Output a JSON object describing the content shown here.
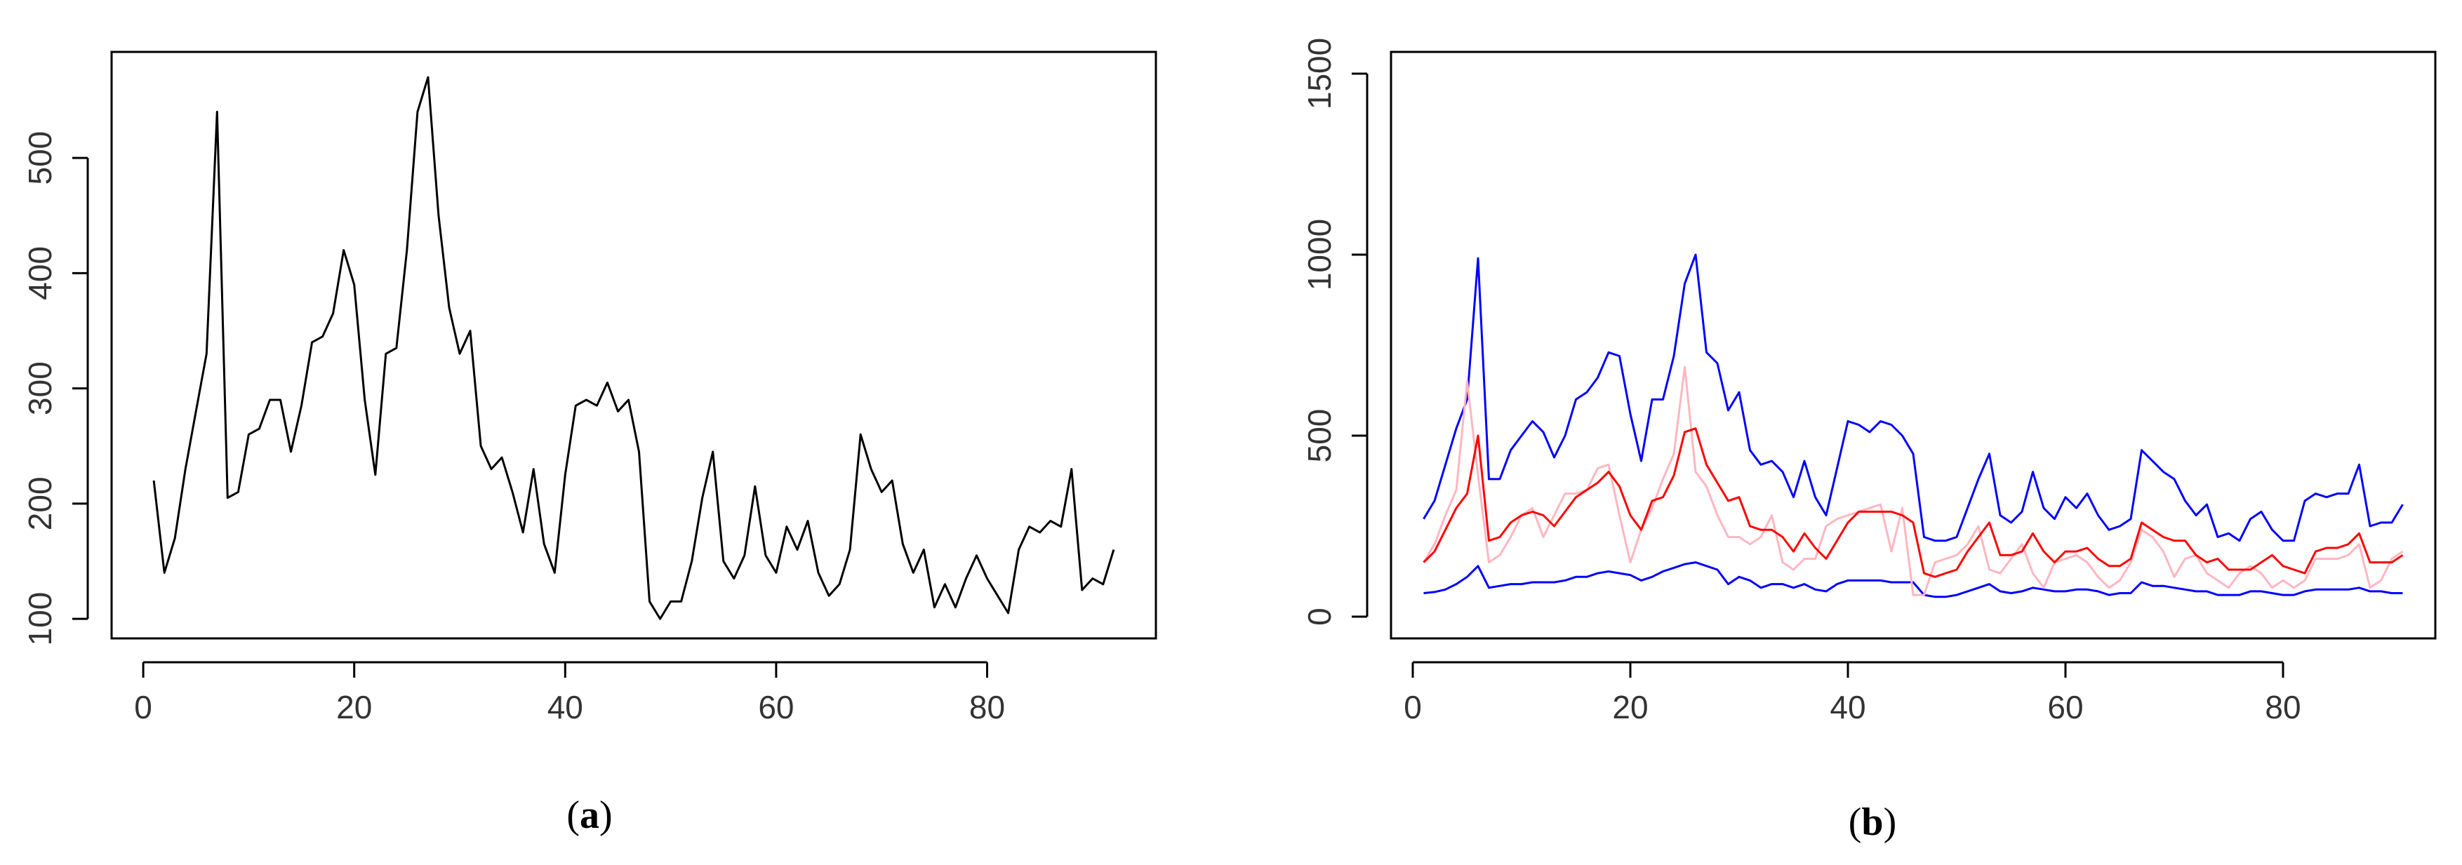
{
  "panels": [
    {
      "id": "a",
      "label_open": "(",
      "label_letter": "a",
      "label_close": ")"
    },
    {
      "id": "b",
      "label_open": "(",
      "label_letter": "b",
      "label_close": ")"
    }
  ],
  "chart_data": [
    {
      "type": "line",
      "title": "",
      "xlabel": "",
      "ylabel": "",
      "xlim": [
        -3,
        96
      ],
      "ylim": [
        83,
        592
      ],
      "xticks": [
        0,
        20,
        40,
        60,
        80
      ],
      "yticks": [
        100,
        200,
        300,
        400,
        500
      ],
      "grid": false,
      "series": [
        {
          "color": "#000000",
          "x": [
            1,
            2,
            3,
            4,
            5,
            6,
            7,
            8,
            9,
            10,
            11,
            12,
            13,
            14,
            15,
            16,
            17,
            18,
            19,
            20,
            21,
            22,
            23,
            24,
            25,
            26,
            27,
            28,
            29,
            30,
            31,
            32,
            33,
            34,
            35,
            36,
            37,
            38,
            39,
            40,
            41,
            42,
            43,
            44,
            45,
            46,
            47,
            48,
            49,
            50,
            51,
            52,
            53,
            54,
            55,
            56,
            57,
            58,
            59,
            60,
            61,
            62,
            63,
            64,
            65,
            66,
            67,
            68,
            69,
            70,
            71,
            72,
            73,
            74,
            75,
            76,
            77,
            78,
            79,
            80,
            81,
            82,
            83,
            84,
            85,
            86,
            87,
            88,
            89,
            90,
            91,
            92
          ],
          "y": [
            220,
            140,
            170,
            230,
            280,
            330,
            540,
            205,
            210,
            260,
            265,
            290,
            290,
            245,
            285,
            340,
            345,
            365,
            420,
            390,
            290,
            225,
            330,
            335,
            420,
            540,
            570,
            450,
            370,
            330,
            350,
            250,
            230,
            240,
            210,
            175,
            230,
            165,
            140,
            225,
            285,
            290,
            285,
            305,
            280,
            290,
            245,
            115,
            100,
            115,
            115,
            150,
            205,
            245,
            150,
            135,
            155,
            215,
            155,
            140,
            180,
            160,
            185,
            140,
            120,
            130,
            160,
            260,
            230,
            210,
            220,
            165,
            140,
            160,
            110,
            130,
            110,
            135,
            155,
            135,
            120,
            105,
            160,
            180,
            175,
            185,
            180,
            230,
            125,
            135,
            130,
            160
          ]
        }
      ]
    },
    {
      "type": "line",
      "title": "",
      "xlabel": "",
      "ylabel": "",
      "xlim": [
        -2,
        94
      ],
      "ylim": [
        -60,
        1560
      ],
      "xticks": [
        0,
        20,
        40,
        60,
        80
      ],
      "yticks": [
        0,
        500,
        1000,
        1500
      ],
      "grid": false,
      "series": [
        {
          "color": "#0000ff",
          "x": [
            1,
            2,
            3,
            4,
            5,
            6,
            7,
            8,
            9,
            10,
            11,
            12,
            13,
            14,
            15,
            16,
            17,
            18,
            19,
            20,
            21,
            22,
            23,
            24,
            25,
            26,
            27,
            28,
            29,
            30,
            31,
            32,
            33,
            34,
            35,
            36,
            37,
            38,
            39,
            40,
            41,
            42,
            43,
            44,
            45,
            46,
            47,
            48,
            49,
            50,
            51,
            52,
            53,
            54,
            55,
            56,
            57,
            58,
            59,
            60,
            61,
            62,
            63,
            64,
            65,
            66,
            67,
            68,
            69,
            70,
            71,
            72,
            73,
            74,
            75,
            76,
            77,
            78,
            79,
            80,
            81,
            82,
            83,
            84,
            85,
            86,
            87,
            88,
            89,
            90,
            91
          ],
          "y": [
            270,
            320,
            420,
            520,
            600,
            990,
            380,
            380,
            460,
            500,
            540,
            510,
            440,
            500,
            600,
            620,
            660,
            730,
            720,
            560,
            430,
            600,
            600,
            720,
            920,
            1000,
            730,
            700,
            570,
            620,
            460,
            420,
            430,
            400,
            330,
            430,
            330,
            280,
            410,
            540,
            530,
            510,
            540,
            530,
            500,
            450,
            220,
            210,
            210,
            220,
            300,
            380,
            450,
            280,
            260,
            290,
            400,
            300,
            270,
            330,
            300,
            340,
            280,
            240,
            250,
            270,
            460,
            430,
            400,
            380,
            320,
            280,
            310,
            220,
            230,
            210,
            270,
            290,
            240,
            210,
            210,
            320,
            340,
            330,
            340,
            340,
            420,
            250,
            260,
            260,
            310
          ]
        },
        {
          "color": "#0000ff",
          "x": [
            1,
            2,
            3,
            4,
            5,
            6,
            7,
            8,
            9,
            10,
            11,
            12,
            13,
            14,
            15,
            16,
            17,
            18,
            19,
            20,
            21,
            22,
            23,
            24,
            25,
            26,
            27,
            28,
            29,
            30,
            31,
            32,
            33,
            34,
            35,
            36,
            37,
            38,
            39,
            40,
            41,
            42,
            43,
            44,
            45,
            46,
            47,
            48,
            49,
            50,
            51,
            52,
            53,
            54,
            55,
            56,
            57,
            58,
            59,
            60,
            61,
            62,
            63,
            64,
            65,
            66,
            67,
            68,
            69,
            70,
            71,
            72,
            73,
            74,
            75,
            76,
            77,
            78,
            79,
            80,
            81,
            82,
            83,
            84,
            85,
            86,
            87,
            88,
            89,
            90,
            91
          ],
          "y": [
            65,
            68,
            75,
            90,
            110,
            140,
            80,
            85,
            90,
            90,
            95,
            95,
            95,
            100,
            110,
            110,
            120,
            125,
            120,
            115,
            100,
            110,
            125,
            135,
            145,
            150,
            140,
            130,
            90,
            110,
            100,
            80,
            90,
            90,
            80,
            90,
            75,
            70,
            90,
            100,
            100,
            100,
            100,
            95,
            95,
            95,
            60,
            55,
            55,
            60,
            70,
            80,
            90,
            70,
            65,
            70,
            80,
            75,
            70,
            70,
            75,
            75,
            70,
            60,
            65,
            65,
            95,
            85,
            85,
            80,
            75,
            70,
            70,
            60,
            60,
            60,
            70,
            70,
            65,
            60,
            60,
            70,
            75,
            75,
            75,
            75,
            80,
            70,
            70,
            65,
            65
          ]
        },
        {
          "color": "#ffb6c1",
          "x": [
            1,
            2,
            3,
            4,
            5,
            6,
            7,
            8,
            9,
            10,
            11,
            12,
            13,
            14,
            15,
            16,
            17,
            18,
            19,
            20,
            21,
            22,
            23,
            24,
            25,
            26,
            27,
            28,
            29,
            30,
            31,
            32,
            33,
            34,
            35,
            36,
            37,
            38,
            39,
            40,
            41,
            42,
            43,
            44,
            45,
            46,
            47,
            48,
            49,
            50,
            51,
            52,
            53,
            54,
            55,
            56,
            57,
            58,
            59,
            60,
            61,
            62,
            63,
            64,
            65,
            66,
            67,
            68,
            69,
            70,
            71,
            72,
            73,
            74,
            75,
            76,
            77,
            78,
            79,
            80,
            81,
            82,
            83,
            84,
            85,
            86,
            87,
            88,
            89,
            90,
            91
          ],
          "y": [
            150,
            200,
            280,
            350,
            650,
            390,
            150,
            170,
            220,
            280,
            300,
            220,
            280,
            340,
            340,
            350,
            410,
            420,
            280,
            150,
            240,
            300,
            380,
            450,
            690,
            400,
            360,
            280,
            220,
            220,
            200,
            220,
            280,
            150,
            130,
            160,
            160,
            250,
            270,
            280,
            290,
            300,
            310,
            180,
            300,
            60,
            60,
            150,
            160,
            170,
            200,
            250,
            130,
            120,
            160,
            200,
            120,
            80,
            150,
            160,
            170,
            150,
            110,
            80,
            100,
            150,
            240,
            220,
            180,
            110,
            160,
            170,
            120,
            100,
            80,
            120,
            140,
            120,
            80,
            100,
            80,
            100,
            160,
            160,
            160,
            170,
            200,
            80,
            100,
            160,
            180
          ]
        },
        {
          "color": "#ff0000",
          "x": [
            1,
            2,
            3,
            4,
            5,
            6,
            7,
            8,
            9,
            10,
            11,
            12,
            13,
            14,
            15,
            16,
            17,
            18,
            19,
            20,
            21,
            22,
            23,
            24,
            25,
            26,
            27,
            28,
            29,
            30,
            31,
            32,
            33,
            34,
            35,
            36,
            37,
            38,
            39,
            40,
            41,
            42,
            43,
            44,
            45,
            46,
            47,
            48,
            49,
            50,
            51,
            52,
            53,
            54,
            55,
            56,
            57,
            58,
            59,
            60,
            61,
            62,
            63,
            64,
            65,
            66,
            67,
            68,
            69,
            70,
            71,
            72,
            73,
            74,
            75,
            76,
            77,
            78,
            79,
            80,
            81,
            82,
            83,
            84,
            85,
            86,
            87,
            88,
            89,
            90,
            91
          ],
          "y": [
            150,
            180,
            240,
            300,
            340,
            500,
            210,
            220,
            260,
            280,
            290,
            280,
            250,
            290,
            330,
            350,
            370,
            400,
            360,
            280,
            240,
            320,
            330,
            390,
            510,
            520,
            420,
            370,
            320,
            330,
            250,
            240,
            240,
            220,
            180,
            230,
            190,
            160,
            210,
            260,
            290,
            290,
            290,
            290,
            280,
            260,
            120,
            110,
            120,
            130,
            180,
            220,
            260,
            170,
            170,
            180,
            230,
            180,
            150,
            180,
            180,
            190,
            160,
            140,
            140,
            160,
            260,
            240,
            220,
            210,
            210,
            170,
            150,
            160,
            130,
            130,
            130,
            150,
            170,
            140,
            130,
            120,
            180,
            190,
            190,
            200,
            230,
            150,
            150,
            150,
            170
          ]
        }
      ]
    }
  ]
}
